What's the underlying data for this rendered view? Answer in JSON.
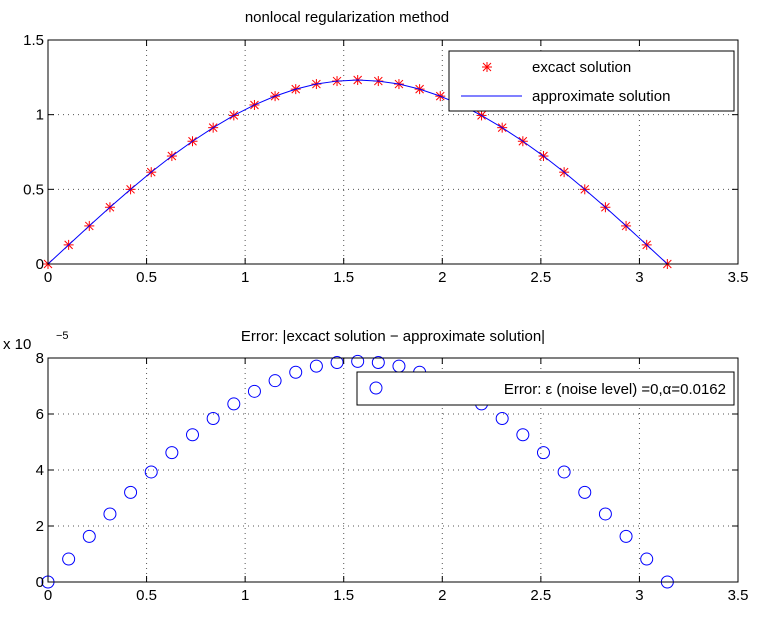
{
  "chart_data": [
    {
      "type": "line",
      "title": "nonlocal regularization method",
      "xlabel": "",
      "ylabel": "",
      "xlim": [
        0,
        3.5
      ],
      "ylim": [
        0,
        1.5
      ],
      "xticks": [
        "0",
        "0.5",
        "1",
        "1.5",
        "2",
        "2.5",
        "3",
        "3.5"
      ],
      "yticks": [
        "0",
        "0.5",
        "1",
        "1.5"
      ],
      "grid": true,
      "legend_position": "top-right",
      "colors": {
        "markers": "#ff0000",
        "line": "#0000ff"
      },
      "series": [
        {
          "name": "excact solution",
          "style": "asterisk-markers",
          "x": [
            0,
            0.1047,
            0.2094,
            0.3142,
            0.4189,
            0.5236,
            0.6283,
            0.733,
            0.8378,
            0.9425,
            1.0472,
            1.1519,
            1.2566,
            1.3614,
            1.4661,
            1.5708,
            1.6755,
            1.7802,
            1.885,
            1.9897,
            2.0944,
            2.1991,
            2.3038,
            2.4086,
            2.5133,
            2.618,
            2.7227,
            2.8274,
            2.9322,
            3.0369,
            3.1416
          ],
          "y": [
            0,
            0.128,
            0.255,
            0.38,
            0.5,
            0.615,
            0.723,
            0.822,
            0.913,
            0.995,
            1.065,
            1.124,
            1.171,
            1.205,
            1.225,
            1.232,
            1.225,
            1.205,
            1.171,
            1.124,
            1.065,
            0.995,
            0.913,
            0.822,
            0.723,
            0.615,
            0.5,
            0.38,
            0.255,
            0.128,
            0
          ]
        },
        {
          "name": "approximate solution",
          "style": "solid-line",
          "x": [
            0,
            0.1047,
            0.2094,
            0.3142,
            0.4189,
            0.5236,
            0.6283,
            0.733,
            0.8378,
            0.9425,
            1.0472,
            1.1519,
            1.2566,
            1.3614,
            1.4661,
            1.5708,
            1.6755,
            1.7802,
            1.885,
            1.9897,
            2.0944,
            2.1991,
            2.3038,
            2.4086,
            2.5133,
            2.618,
            2.7227,
            2.8274,
            2.9322,
            3.0369,
            3.1416
          ],
          "y": [
            0,
            0.128,
            0.255,
            0.38,
            0.5,
            0.615,
            0.723,
            0.822,
            0.913,
            0.995,
            1.065,
            1.124,
            1.171,
            1.205,
            1.225,
            1.232,
            1.225,
            1.205,
            1.171,
            1.124,
            1.065,
            0.995,
            0.913,
            0.822,
            0.723,
            0.615,
            0.5,
            0.38,
            0.255,
            0.128,
            0
          ]
        }
      ]
    },
    {
      "type": "scatter",
      "title": "Error: |excact solution − approximate solution|",
      "xlabel": "",
      "ylabel": "",
      "xlim": [
        0,
        3.5
      ],
      "ylim": [
        0,
        8
      ],
      "y_scale_label": "x 10",
      "y_scale_exponent": "−5",
      "xticks": [
        "0",
        "0.5",
        "1",
        "1.5",
        "2",
        "2.5",
        "3",
        "3.5"
      ],
      "yticks": [
        "0",
        "2",
        "4",
        "6",
        "8"
      ],
      "grid": true,
      "legend_position": "top-right",
      "colors": {
        "markers": "#0000ff"
      },
      "series": [
        {
          "name": "Error: ε (noise level) =0,α=0.0162",
          "style": "circle-markers",
          "x": [
            0,
            0.1047,
            0.2094,
            0.3142,
            0.4189,
            0.5236,
            0.6283,
            0.733,
            0.8378,
            0.9425,
            1.0472,
            1.1519,
            1.2566,
            1.3614,
            1.4661,
            1.5708,
            1.6755,
            1.7802,
            1.885,
            1.9897,
            2.0944,
            2.1991,
            2.3038,
            2.4086,
            2.5133,
            2.618,
            2.7227,
            2.8274,
            2.9322,
            3.0369,
            3.1416
          ],
          "y": [
            0,
            0.82,
            1.63,
            2.43,
            3.2,
            3.93,
            4.62,
            5.26,
            5.84,
            6.36,
            6.81,
            7.19,
            7.49,
            7.71,
            7.84,
            7.88,
            7.84,
            7.71,
            7.49,
            7.19,
            6.81,
            6.36,
            5.84,
            5.26,
            4.62,
            3.93,
            3.2,
            2.43,
            1.63,
            0.82,
            0
          ]
        }
      ]
    }
  ]
}
